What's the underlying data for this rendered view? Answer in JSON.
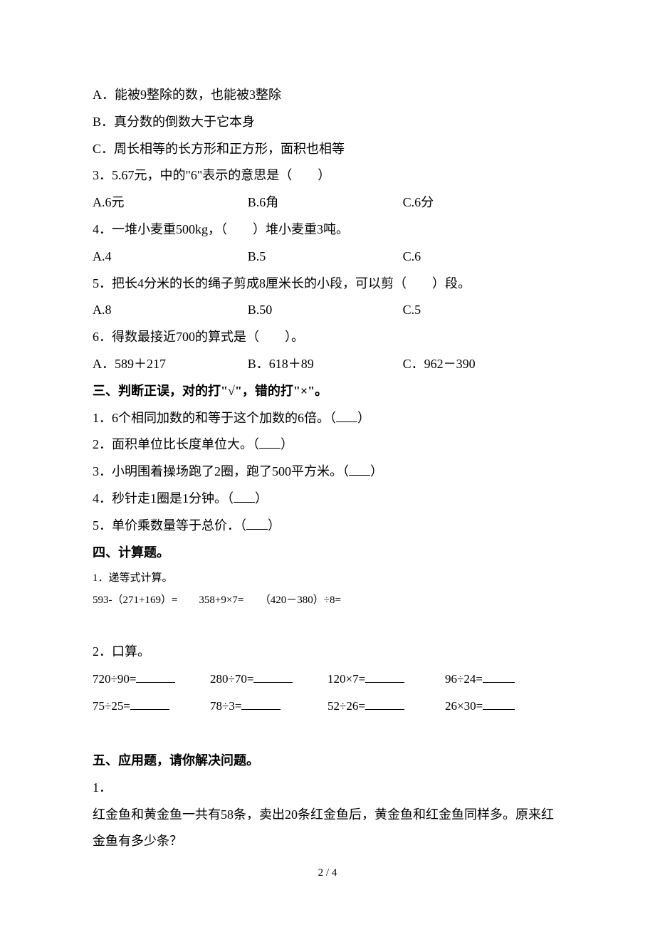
{
  "q2_prev": {
    "optA": "A．能被9整除的数，也能被3整除",
    "optB": "B．真分数的倒数大于它本身",
    "optC": "C．周长相等的长方形和正方形，面积也相等"
  },
  "q3": {
    "stem": "3．5.67元，中的\"6\"表示的意思是（　　）",
    "optA": "A.6元",
    "optB": "B.6角",
    "optC": "C.6分"
  },
  "q4": {
    "stem": "4．一堆小麦重500kg，（　　）堆小麦重3吨。",
    "optA": "A.4",
    "optB": "B.5",
    "optC": "C.6"
  },
  "q5": {
    "stem": "5．把长4分米的长的绳子剪成8厘米长的小段，可以剪（　　）段。",
    "optA": "A.8",
    "optB": "B.50",
    "optC": "C.5"
  },
  "q6": {
    "stem": "6．得数最接近700的算式是（　　）。",
    "optA": "A．589＋217",
    "optB": "B．618＋89",
    "optC": "C．962－390"
  },
  "sec3": {
    "header": "三、判断正误，对的打\"√\"，错的打\"×\"。",
    "q1": "1．6个相同加数的和等于这个加数的6倍。（",
    "q2": "2．面积单位比长度单位大。（",
    "q3": "3．小明围着操场跑了2圈，跑了500平方米。（",
    "q4": "4．秒针走1圈是1分钟。（",
    "q5": "5．单价乘数量等于总价．（",
    "close": "）"
  },
  "sec4": {
    "header": "四、计算题。",
    "q1_label": "1．递等式计算。",
    "q1_expr": "593-（271+169）=　　358+9×7=　　（420－380）÷8=",
    "q2_label": "2．口算。",
    "row1": {
      "c1": "720÷90=",
      "c2": "280÷70=",
      "c3": "120×7=",
      "c4": "96÷24="
    },
    "row2": {
      "c1": "75÷25=",
      "c2": "78÷3=",
      "c3": "52÷26=",
      "c4": "26×30="
    }
  },
  "sec5": {
    "header": "五、应用题，请你解决问题。",
    "q1_label": "1．",
    "q1_text": "红金鱼和黄金鱼一共有58条，卖出20条红金鱼后，黄金鱼和红金鱼同样多。原来红金鱼有多少条？"
  },
  "footer": "2 / 4"
}
